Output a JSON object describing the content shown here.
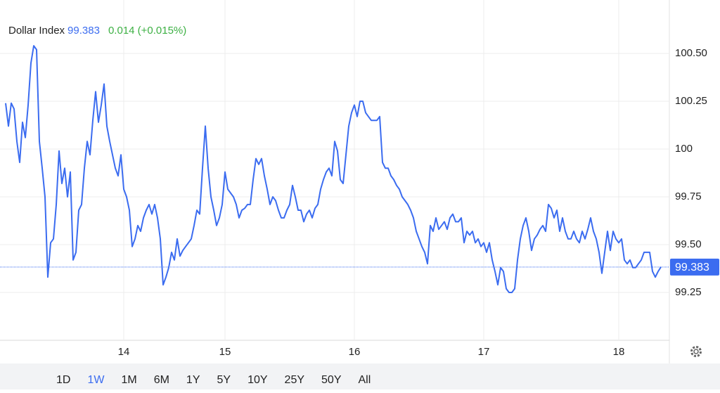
{
  "chart_data": {
    "type": "line",
    "title": "Dollar Index",
    "last_value": 99.383,
    "change": "0.014 (+0.015%)",
    "ylim": [
      99.0,
      100.75
    ],
    "yticks": [
      99.25,
      {
        "value": 99.5,
        "label": "99.50"
      },
      99.75,
      100,
      100.25,
      {
        "value": 100.5,
        "label": "100.50"
      }
    ],
    "grid": true,
    "categories": [
      null,
      null,
      null,
      null,
      null,
      null,
      null,
      null,
      null,
      null,
      null,
      null,
      null,
      null,
      null,
      null,
      null,
      null,
      null,
      null,
      null,
      null,
      null,
      null,
      null,
      null,
      null,
      null,
      null,
      null,
      null,
      null,
      null,
      null,
      null,
      null,
      null,
      null,
      null,
      null,
      null,
      null,
      "14",
      null,
      null,
      null,
      null,
      null,
      null,
      null,
      null,
      null,
      null,
      null,
      null,
      null,
      null,
      null,
      null,
      null,
      null,
      null,
      null,
      null,
      null,
      null,
      null,
      null,
      null,
      null,
      null,
      null,
      null,
      null,
      null,
      null,
      null,
      null,
      "15",
      null,
      null,
      null,
      null,
      null,
      null,
      null,
      null,
      null,
      null,
      null,
      null,
      null,
      null,
      null,
      null,
      null,
      null,
      null,
      null,
      null,
      null,
      null,
      null,
      null,
      null,
      null,
      null,
      null,
      null,
      null,
      null,
      null,
      null,
      null,
      null,
      null,
      null,
      null,
      null,
      null,
      null,
      null,
      null,
      null,
      "16",
      null,
      null,
      null,
      null,
      null,
      null,
      null,
      null,
      null,
      null,
      null,
      null,
      null,
      null,
      null,
      null,
      null,
      null,
      null,
      null,
      null,
      null,
      null,
      null,
      null,
      null,
      null,
      null,
      null,
      null,
      null,
      null,
      null,
      null,
      null,
      null,
      null,
      null,
      null,
      null,
      null,
      null,
      null,
      null,
      null,
      "17",
      null,
      null,
      null,
      null,
      null,
      null,
      null,
      null,
      null,
      null,
      null,
      null,
      null,
      null,
      null,
      null,
      null,
      null,
      null,
      null,
      null,
      null,
      null,
      null,
      null,
      null,
      null,
      null,
      null,
      null,
      null,
      null,
      null,
      null,
      null,
      null,
      null,
      null,
      null,
      null,
      null,
      null,
      null,
      null,
      null,
      null,
      null,
      "18",
      null,
      null,
      null,
      null,
      null,
      null,
      null,
      null,
      null,
      null,
      null,
      null,
      null,
      null,
      null
    ],
    "series": [
      {
        "name": "Dollar Index",
        "color": "#3b6cf0",
        "values": [
          100.24,
          100.12,
          100.24,
          100.21,
          100.04,
          99.93,
          100.14,
          100.06,
          100.23,
          100.45,
          100.54,
          100.52,
          100.04,
          99.9,
          99.75,
          99.33,
          99.51,
          99.53,
          99.71,
          99.99,
          99.82,
          99.9,
          99.75,
          99.88,
          99.42,
          99.46,
          99.68,
          99.71,
          99.9,
          100.04,
          99.97,
          100.15,
          100.3,
          100.14,
          100.23,
          100.34,
          100.12,
          100.04,
          99.97,
          99.9,
          99.86,
          99.97,
          99.79,
          99.75,
          99.68,
          99.49,
          99.53,
          99.6,
          99.57,
          99.64,
          99.68,
          99.71,
          99.66,
          99.71,
          99.64,
          99.53,
          99.29,
          99.33,
          99.38,
          99.46,
          99.42,
          99.53,
          99.44,
          99.47,
          99.49,
          99.51,
          99.53,
          99.6,
          99.68,
          99.66,
          99.9,
          100.12,
          99.9,
          99.75,
          99.68,
          99.6,
          99.64,
          99.71,
          99.88,
          99.79,
          99.77,
          99.75,
          99.71,
          99.64,
          99.68,
          99.69,
          99.71,
          99.71,
          99.84,
          99.95,
          99.92,
          99.95,
          99.86,
          99.79,
          99.71,
          99.75,
          99.73,
          99.68,
          99.64,
          99.64,
          99.68,
          99.71,
          99.81,
          99.75,
          99.68,
          99.68,
          99.62,
          99.66,
          99.68,
          99.64,
          99.69,
          99.71,
          99.79,
          99.84,
          99.88,
          99.9,
          99.86,
          100.04,
          99.99,
          99.84,
          99.82,
          99.97,
          100.12,
          100.19,
          100.23,
          100.17,
          100.25,
          100.25,
          100.19,
          100.17,
          100.15,
          100.15,
          100.15,
          100.17,
          99.93,
          99.9,
          99.9,
          99.86,
          99.84,
          99.81,
          99.79,
          99.75,
          99.73,
          99.71,
          99.68,
          99.64,
          99.57,
          99.53,
          99.49,
          99.46,
          99.4,
          99.6,
          99.57,
          99.64,
          99.58,
          99.6,
          99.62,
          99.58,
          99.64,
          99.66,
          99.62,
          99.62,
          99.64,
          99.51,
          99.57,
          99.55,
          99.57,
          99.51,
          99.53,
          99.49,
          99.51,
          99.46,
          99.51,
          99.42,
          99.36,
          99.29,
          99.38,
          99.36,
          99.27,
          99.25,
          99.25,
          99.27,
          99.42,
          99.53,
          99.6,
          99.64,
          99.57,
          99.47,
          99.53,
          99.55,
          99.58,
          99.6,
          99.57,
          99.71,
          99.69,
          99.64,
          99.68,
          99.57,
          99.64,
          99.57,
          99.53,
          99.53,
          99.57,
          99.53,
          99.51,
          99.57,
          99.53,
          99.58,
          99.64,
          99.57,
          99.53,
          99.46,
          99.35,
          99.46,
          99.57,
          99.47,
          99.57,
          99.53,
          99.51,
          99.53,
          99.42,
          99.4,
          99.42,
          99.38,
          99.38,
          99.4,
          99.42,
          99.46,
          99.46,
          99.46,
          99.36,
          99.33,
          99.36,
          99.383
        ]
      }
    ],
    "range_buttons": [
      "1D",
      "1W",
      "1M",
      "6M",
      "1Y",
      "5Y",
      "10Y",
      "25Y",
      "50Y",
      "All"
    ],
    "active_range": "1W"
  }
}
